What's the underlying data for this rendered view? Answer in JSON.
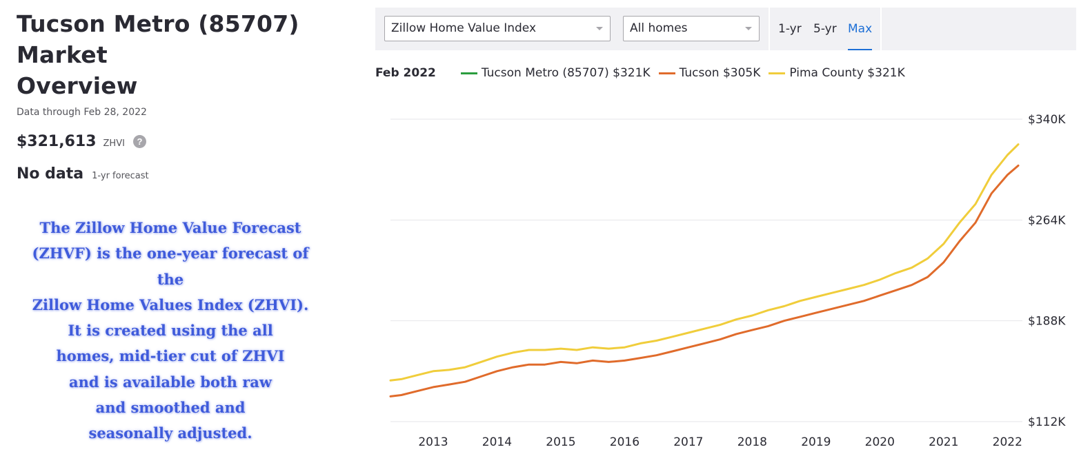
{
  "header": {
    "title_line1": "Tucson Metro (85707) Market",
    "title_line2": "Overview",
    "subtitle": "Data through Feb 28, 2022"
  },
  "summary": {
    "zhvi_value": "$321,613",
    "zhvi_label": "ZHVI",
    "help_icon": "?",
    "forecast_value": "No data",
    "forecast_label": "1-yr forecast"
  },
  "note": {
    "lines": [
      "The Zillow Home Value Forecast",
      "(ZHVF) is the one-year forecast of the",
      "Zillow Home Values Index (ZHVI).",
      "It is created using the all",
      "homes, mid-tier cut of ZHVI",
      "and is available both raw",
      "and smoothed and",
      "seasonally adjusted."
    ],
    "color": "#3f5bdb"
  },
  "toolbar": {
    "metric_select": "Zillow Home Value Index",
    "home_type_select": "All homes",
    "ranges": [
      "1-yr",
      "5-yr",
      "Max"
    ],
    "active_range": "Max",
    "accent": "#1d6fd6"
  },
  "legend": {
    "date": "Feb 2022",
    "items": [
      {
        "label": "Tucson Metro (85707) $321K",
        "color": "#2a9d3e"
      },
      {
        "label": "Tucson $305K",
        "color": "#e06b2b"
      },
      {
        "label": "Pima County $321K",
        "color": "#f0cd3b"
      }
    ]
  },
  "chart_data": {
    "type": "line",
    "title": "",
    "xlabel": "",
    "ylabel": "",
    "ylim": [
      112000,
      340000
    ],
    "y_ticks": [
      "$112K",
      "$188K",
      "$264K",
      "$340K"
    ],
    "y_tick_values": [
      112000,
      188000,
      264000,
      340000
    ],
    "xlim": [
      2012.33,
      2022.17
    ],
    "x_ticks": [
      "2013",
      "2014",
      "2015",
      "2016",
      "2017",
      "2018",
      "2019",
      "2020",
      "2021",
      "2022"
    ],
    "grid": true,
    "series": [
      {
        "name": "Tucson",
        "color": "#e06b2b",
        "points": [
          [
            2012.33,
            131000
          ],
          [
            2012.5,
            132000
          ],
          [
            2012.75,
            135000
          ],
          [
            2013.0,
            138000
          ],
          [
            2013.25,
            140000
          ],
          [
            2013.5,
            142000
          ],
          [
            2013.75,
            146000
          ],
          [
            2014.0,
            150000
          ],
          [
            2014.25,
            153000
          ],
          [
            2014.5,
            155000
          ],
          [
            2014.75,
            155000
          ],
          [
            2015.0,
            157000
          ],
          [
            2015.25,
            156000
          ],
          [
            2015.5,
            158000
          ],
          [
            2015.75,
            157000
          ],
          [
            2016.0,
            158000
          ],
          [
            2016.25,
            160000
          ],
          [
            2016.5,
            162000
          ],
          [
            2016.75,
            165000
          ],
          [
            2017.0,
            168000
          ],
          [
            2017.25,
            171000
          ],
          [
            2017.5,
            174000
          ],
          [
            2017.75,
            178000
          ],
          [
            2018.0,
            181000
          ],
          [
            2018.25,
            184000
          ],
          [
            2018.5,
            188000
          ],
          [
            2018.75,
            191000
          ],
          [
            2019.0,
            194000
          ],
          [
            2019.25,
            197000
          ],
          [
            2019.5,
            200000
          ],
          [
            2019.75,
            203000
          ],
          [
            2020.0,
            207000
          ],
          [
            2020.25,
            211000
          ],
          [
            2020.5,
            215000
          ],
          [
            2020.75,
            221000
          ],
          [
            2021.0,
            232000
          ],
          [
            2021.25,
            248000
          ],
          [
            2021.5,
            262000
          ],
          [
            2021.75,
            284000
          ],
          [
            2022.0,
            298000
          ],
          [
            2022.17,
            305000
          ]
        ]
      },
      {
        "name": "Pima County",
        "color": "#f0cd3b",
        "points": [
          [
            2012.33,
            143000
          ],
          [
            2012.5,
            144000
          ],
          [
            2012.75,
            147000
          ],
          [
            2013.0,
            150000
          ],
          [
            2013.25,
            151000
          ],
          [
            2013.5,
            153000
          ],
          [
            2013.75,
            157000
          ],
          [
            2014.0,
            161000
          ],
          [
            2014.25,
            164000
          ],
          [
            2014.5,
            166000
          ],
          [
            2014.75,
            166000
          ],
          [
            2015.0,
            167000
          ],
          [
            2015.25,
            166000
          ],
          [
            2015.5,
            168000
          ],
          [
            2015.75,
            167000
          ],
          [
            2016.0,
            168000
          ],
          [
            2016.25,
            171000
          ],
          [
            2016.5,
            173000
          ],
          [
            2016.75,
            176000
          ],
          [
            2017.0,
            179000
          ],
          [
            2017.25,
            182000
          ],
          [
            2017.5,
            185000
          ],
          [
            2017.75,
            189000
          ],
          [
            2018.0,
            192000
          ],
          [
            2018.25,
            196000
          ],
          [
            2018.5,
            199000
          ],
          [
            2018.75,
            203000
          ],
          [
            2019.0,
            206000
          ],
          [
            2019.25,
            209000
          ],
          [
            2019.5,
            212000
          ],
          [
            2019.75,
            215000
          ],
          [
            2020.0,
            219000
          ],
          [
            2020.25,
            224000
          ],
          [
            2020.5,
            228000
          ],
          [
            2020.75,
            235000
          ],
          [
            2021.0,
            246000
          ],
          [
            2021.25,
            262000
          ],
          [
            2021.5,
            276000
          ],
          [
            2021.75,
            298000
          ],
          [
            2022.0,
            313000
          ],
          [
            2022.17,
            321000
          ]
        ]
      }
    ]
  }
}
